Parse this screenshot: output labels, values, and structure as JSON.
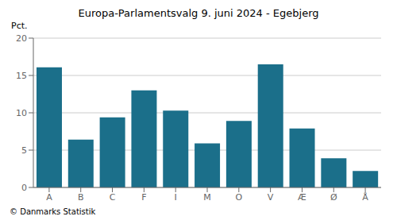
{
  "chart_data": {
    "type": "bar",
    "title": "Europa-Parlamentsvalg 9. juni 2024 - Egebjerg",
    "ylabel": "Pct.",
    "footer": "© Danmarks Statistik",
    "categories": [
      "A",
      "B",
      "C",
      "F",
      "I",
      "M",
      "O",
      "V",
      "Æ",
      "Ø",
      "Å"
    ],
    "values": [
      16.1,
      6.4,
      9.4,
      13.0,
      10.3,
      5.9,
      8.9,
      16.5,
      7.9,
      3.9,
      2.2
    ],
    "color": "#1b6f8a",
    "ylim": [
      0,
      20
    ],
    "yticks": [
      0,
      5,
      10,
      15,
      20
    ],
    "grid": true
  }
}
